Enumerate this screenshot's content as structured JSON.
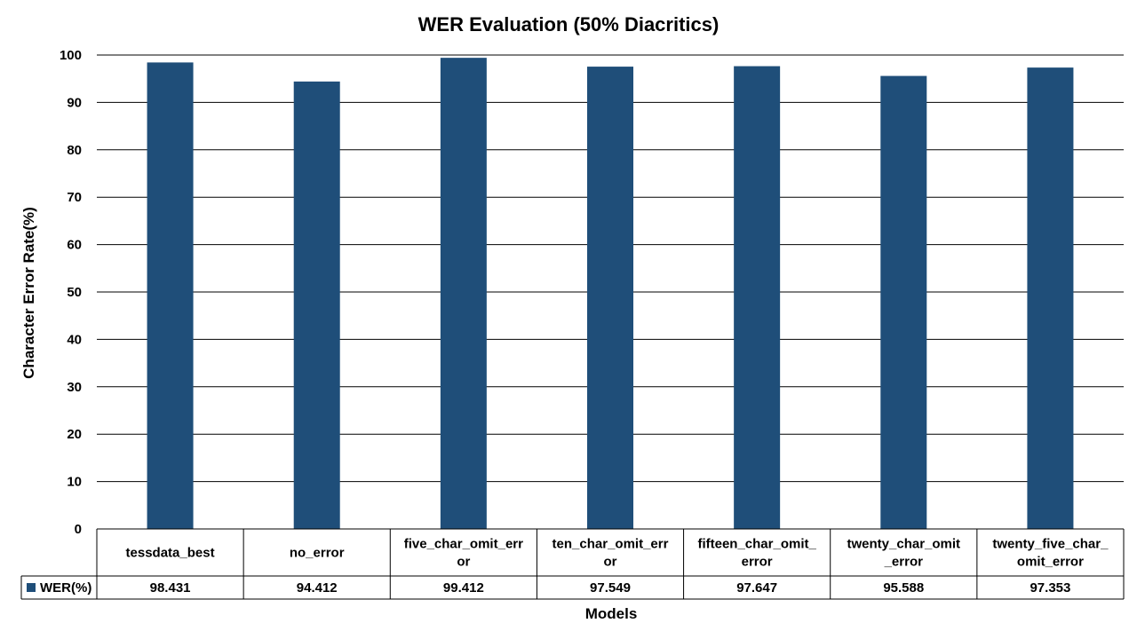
{
  "chart_data": {
    "type": "bar",
    "title": "WER Evaluation (50% Diacritics)",
    "xlabel": "Models",
    "ylabel": "Character Error Rate(%)",
    "ylim": [
      0,
      100
    ],
    "yticks": [
      0,
      10,
      20,
      30,
      40,
      50,
      60,
      70,
      80,
      90,
      100
    ],
    "grid": true,
    "legend": "data-table",
    "categories": [
      "tessdata_best",
      "no_error",
      "five_char_omit_error",
      "ten_char_omit_error",
      "fifteen_char_omit_error",
      "twenty_char_omit_error",
      "twenty_five_char_omit_error"
    ],
    "category_lines": [
      [
        "tessdata_best"
      ],
      [
        "no_error"
      ],
      [
        "five_char_omit_err",
        "or"
      ],
      [
        "ten_char_omit_err",
        "or"
      ],
      [
        "fifteen_char_omit_",
        "error"
      ],
      [
        "twenty_char_omit",
        "_error"
      ],
      [
        "twenty_five_char_",
        "omit_error"
      ]
    ],
    "series": [
      {
        "name": "WER(%)",
        "color": "#1f4e79",
        "values": [
          98.431,
          94.412,
          99.412,
          97.549,
          97.647,
          95.588,
          97.353
        ],
        "value_labels": [
          "98.431",
          "94.412",
          "99.412",
          "97.549",
          "97.647",
          "95.588",
          "97.353"
        ]
      }
    ]
  }
}
